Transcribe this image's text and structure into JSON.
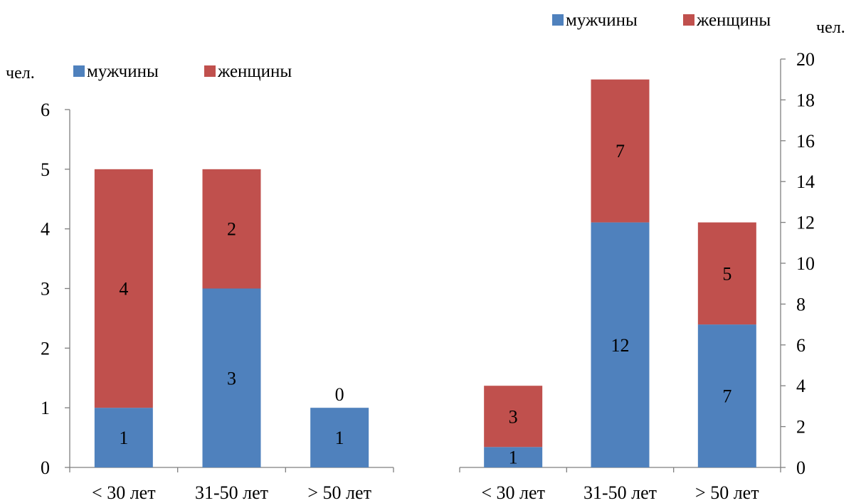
{
  "colors": {
    "male": "#4f81bd",
    "female": "#c0504d",
    "axis": "#7f7f7f"
  },
  "chart_data": [
    {
      "type": "bar",
      "stacked": true,
      "categories": [
        "< 30 лет",
        "31-50 лет",
        "> 50 лет"
      ],
      "series": [
        {
          "name": "мужчины",
          "values": [
            1,
            3,
            1
          ]
        },
        {
          "name": "женщины",
          "values": [
            4,
            2,
            0
          ]
        }
      ],
      "ylabel": "чел.",
      "ylim": [
        0,
        6
      ],
      "yticks": [
        0,
        1,
        2,
        3,
        4,
        5,
        6
      ],
      "y_axis_side": "left",
      "legend_position": "top",
      "grid": false
    },
    {
      "type": "bar",
      "stacked": true,
      "categories": [
        "< 30 лет",
        "31-50 лет",
        "> 50 лет"
      ],
      "series": [
        {
          "name": "мужчины",
          "values": [
            1,
            12,
            7
          ]
        },
        {
          "name": "женщины",
          "values": [
            3,
            7,
            5
          ]
        }
      ],
      "ylabel": "чел.",
      "ylim": [
        0,
        20
      ],
      "yticks": [
        0,
        2,
        4,
        6,
        8,
        10,
        12,
        14,
        16,
        18,
        20
      ],
      "y_axis_side": "right",
      "legend_position": "top-right",
      "grid": false
    }
  ]
}
